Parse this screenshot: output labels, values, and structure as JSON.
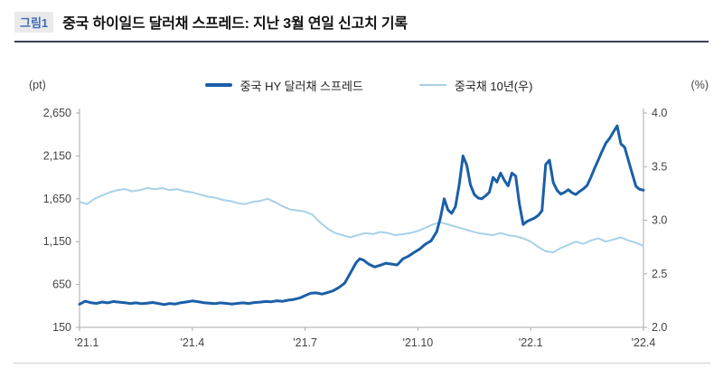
{
  "header": {
    "figure_label": "그림1",
    "title": "중국 하이일드 달러채 스프레드: 지난 3월 연일 신고치 기록"
  },
  "colors": {
    "spread_line": "#1b5fa8",
    "yield_line": "#a9d0e8",
    "header_rule": "#3a4154",
    "axis_line": "#aaaaaa",
    "tick_text": "#444444"
  },
  "chart_data": {
    "type": "line",
    "title": "중국 하이일드 달러채 스프레드: 지난 3월 연일 신고치 기록",
    "xlabel": "",
    "ylabel": "",
    "grid": false,
    "legend_position": "top",
    "x_range_months": [
      0,
      15
    ],
    "x_tick_positions": [
      0,
      3,
      6,
      9,
      12,
      15
    ],
    "x_tick_labels": [
      "'21.1",
      "'21.4",
      "'21.7",
      "'21.10",
      "'22.1",
      "'22.4"
    ],
    "left_axis": {
      "label": "(pt)",
      "min": 150,
      "max": 2650,
      "tick_values": [
        150,
        650,
        1150,
        1650,
        2150,
        2650
      ],
      "tick_labels": [
        "150",
        "650",
        "1,150",
        "1,650",
        "2,150",
        "2,650"
      ]
    },
    "right_axis": {
      "label": "(%)",
      "min": 2.0,
      "max": 4.0,
      "tick_values": [
        2.0,
        2.5,
        3.0,
        3.5,
        4.0
      ],
      "tick_labels": [
        "2.0",
        "2.5",
        "3.0",
        "3.5",
        "4.0"
      ]
    },
    "series": [
      {
        "name": "중국 HY 달러채 스프레드",
        "axis": "left",
        "color": "#1b5fa8",
        "width": 3,
        "points": [
          [
            0.0,
            420
          ],
          [
            0.15,
            455
          ],
          [
            0.3,
            438
          ],
          [
            0.45,
            430
          ],
          [
            0.6,
            445
          ],
          [
            0.75,
            436
          ],
          [
            0.9,
            452
          ],
          [
            1.05,
            444
          ],
          [
            1.2,
            438
          ],
          [
            1.35,
            428
          ],
          [
            1.5,
            436
          ],
          [
            1.65,
            426
          ],
          [
            1.8,
            432
          ],
          [
            1.95,
            440
          ],
          [
            2.1,
            428
          ],
          [
            2.25,
            416
          ],
          [
            2.4,
            428
          ],
          [
            2.55,
            422
          ],
          [
            2.7,
            438
          ],
          [
            2.85,
            446
          ],
          [
            3.0,
            458
          ],
          [
            3.15,
            450
          ],
          [
            3.3,
            438
          ],
          [
            3.45,
            432
          ],
          [
            3.6,
            426
          ],
          [
            3.75,
            436
          ],
          [
            3.9,
            430
          ],
          [
            4.05,
            422
          ],
          [
            4.2,
            430
          ],
          [
            4.35,
            436
          ],
          [
            4.5,
            428
          ],
          [
            4.65,
            440
          ],
          [
            4.8,
            444
          ],
          [
            4.95,
            452
          ],
          [
            5.1,
            448
          ],
          [
            5.25,
            460
          ],
          [
            5.4,
            454
          ],
          [
            5.55,
            468
          ],
          [
            5.7,
            476
          ],
          [
            5.85,
            492
          ],
          [
            6.0,
            520
          ],
          [
            6.15,
            548
          ],
          [
            6.3,
            552
          ],
          [
            6.45,
            538
          ],
          [
            6.6,
            556
          ],
          [
            6.75,
            578
          ],
          [
            6.9,
            615
          ],
          [
            7.05,
            665
          ],
          [
            7.2,
            780
          ],
          [
            7.35,
            900
          ],
          [
            7.45,
            950
          ],
          [
            7.55,
            935
          ],
          [
            7.7,
            885
          ],
          [
            7.85,
            855
          ],
          [
            8.0,
            875
          ],
          [
            8.15,
            898
          ],
          [
            8.3,
            888
          ],
          [
            8.45,
            878
          ],
          [
            8.6,
            950
          ],
          [
            8.75,
            980
          ],
          [
            8.9,
            1025
          ],
          [
            9.05,
            1065
          ],
          [
            9.2,
            1120
          ],
          [
            9.35,
            1160
          ],
          [
            9.5,
            1265
          ],
          [
            9.6,
            1430
          ],
          [
            9.7,
            1650
          ],
          [
            9.8,
            1520
          ],
          [
            9.9,
            1480
          ],
          [
            10.0,
            1560
          ],
          [
            10.1,
            1820
          ],
          [
            10.2,
            2150
          ],
          [
            10.3,
            2040
          ],
          [
            10.4,
            1810
          ],
          [
            10.5,
            1700
          ],
          [
            10.6,
            1660
          ],
          [
            10.7,
            1650
          ],
          [
            10.8,
            1685
          ],
          [
            10.9,
            1725
          ],
          [
            11.0,
            1900
          ],
          [
            11.1,
            1845
          ],
          [
            11.2,
            1950
          ],
          [
            11.3,
            1865
          ],
          [
            11.4,
            1800
          ],
          [
            11.5,
            1950
          ],
          [
            11.6,
            1915
          ],
          [
            11.7,
            1590
          ],
          [
            11.8,
            1350
          ],
          [
            11.9,
            1385
          ],
          [
            12.0,
            1405
          ],
          [
            12.1,
            1425
          ],
          [
            12.2,
            1455
          ],
          [
            12.3,
            1510
          ],
          [
            12.4,
            2050
          ],
          [
            12.5,
            2100
          ],
          [
            12.6,
            1840
          ],
          [
            12.7,
            1750
          ],
          [
            12.8,
            1705
          ],
          [
            12.9,
            1725
          ],
          [
            13.0,
            1755
          ],
          [
            13.1,
            1720
          ],
          [
            13.2,
            1700
          ],
          [
            13.3,
            1735
          ],
          [
            13.4,
            1765
          ],
          [
            13.5,
            1805
          ],
          [
            13.6,
            1900
          ],
          [
            13.7,
            2005
          ],
          [
            13.8,
            2105
          ],
          [
            13.9,
            2205
          ],
          [
            14.0,
            2300
          ],
          [
            14.1,
            2355
          ],
          [
            14.2,
            2430
          ],
          [
            14.3,
            2500
          ],
          [
            14.4,
            2290
          ],
          [
            14.5,
            2250
          ],
          [
            14.6,
            2095
          ],
          [
            14.7,
            1945
          ],
          [
            14.8,
            1795
          ],
          [
            14.9,
            1760
          ],
          [
            15.0,
            1750
          ]
        ]
      },
      {
        "name": "중국채 10년(우)",
        "axis": "right",
        "color": "#a9d0e8",
        "width": 2,
        "points": [
          [
            0.0,
            3.17
          ],
          [
            0.2,
            3.15
          ],
          [
            0.4,
            3.2
          ],
          [
            0.6,
            3.23
          ],
          [
            0.8,
            3.26
          ],
          [
            1.0,
            3.28
          ],
          [
            1.2,
            3.29
          ],
          [
            1.4,
            3.27
          ],
          [
            1.6,
            3.28
          ],
          [
            1.8,
            3.3
          ],
          [
            2.0,
            3.29
          ],
          [
            2.2,
            3.3
          ],
          [
            2.4,
            3.28
          ],
          [
            2.6,
            3.29
          ],
          [
            2.8,
            3.27
          ],
          [
            3.0,
            3.26
          ],
          [
            3.2,
            3.24
          ],
          [
            3.4,
            3.22
          ],
          [
            3.6,
            3.21
          ],
          [
            3.8,
            3.19
          ],
          [
            4.0,
            3.18
          ],
          [
            4.2,
            3.16
          ],
          [
            4.4,
            3.15
          ],
          [
            4.6,
            3.17
          ],
          [
            4.8,
            3.18
          ],
          [
            5.0,
            3.2
          ],
          [
            5.2,
            3.17
          ],
          [
            5.4,
            3.13
          ],
          [
            5.6,
            3.1
          ],
          [
            5.8,
            3.09
          ],
          [
            6.0,
            3.08
          ],
          [
            6.2,
            3.05
          ],
          [
            6.4,
            2.98
          ],
          [
            6.6,
            2.92
          ],
          [
            6.8,
            2.88
          ],
          [
            7.0,
            2.86
          ],
          [
            7.2,
            2.84
          ],
          [
            7.4,
            2.86
          ],
          [
            7.6,
            2.88
          ],
          [
            7.8,
            2.87
          ],
          [
            8.0,
            2.89
          ],
          [
            8.2,
            2.88
          ],
          [
            8.4,
            2.86
          ],
          [
            8.6,
            2.87
          ],
          [
            8.8,
            2.88
          ],
          [
            9.0,
            2.9
          ],
          [
            9.2,
            2.93
          ],
          [
            9.4,
            2.96
          ],
          [
            9.6,
            2.98
          ],
          [
            9.8,
            2.96
          ],
          [
            10.0,
            2.94
          ],
          [
            10.2,
            2.92
          ],
          [
            10.4,
            2.9
          ],
          [
            10.6,
            2.88
          ],
          [
            10.8,
            2.87
          ],
          [
            11.0,
            2.86
          ],
          [
            11.2,
            2.88
          ],
          [
            11.4,
            2.86
          ],
          [
            11.6,
            2.85
          ],
          [
            11.8,
            2.83
          ],
          [
            12.0,
            2.8
          ],
          [
            12.2,
            2.75
          ],
          [
            12.4,
            2.71
          ],
          [
            12.6,
            2.7
          ],
          [
            12.8,
            2.74
          ],
          [
            13.0,
            2.77
          ],
          [
            13.2,
            2.8
          ],
          [
            13.4,
            2.78
          ],
          [
            13.6,
            2.81
          ],
          [
            13.8,
            2.83
          ],
          [
            14.0,
            2.8
          ],
          [
            14.2,
            2.82
          ],
          [
            14.4,
            2.84
          ],
          [
            14.6,
            2.81
          ],
          [
            14.8,
            2.79
          ],
          [
            15.0,
            2.76
          ]
        ]
      }
    ]
  }
}
